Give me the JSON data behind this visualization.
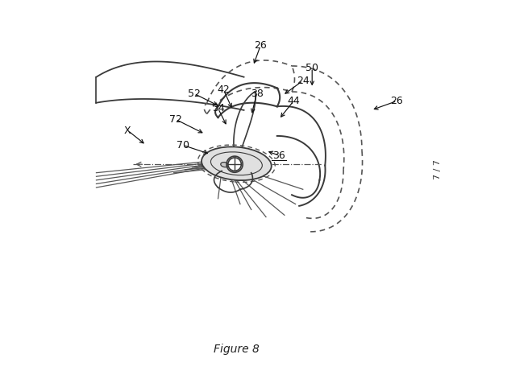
{
  "figure_label": "Figure 8",
  "page_label": "7 / 7",
  "bg_color": "#ffffff",
  "line_color": "#3a3a3a",
  "dashed_color": "#555555",
  "figsize": [
    6.6,
    4.66
  ],
  "dpi": 100
}
